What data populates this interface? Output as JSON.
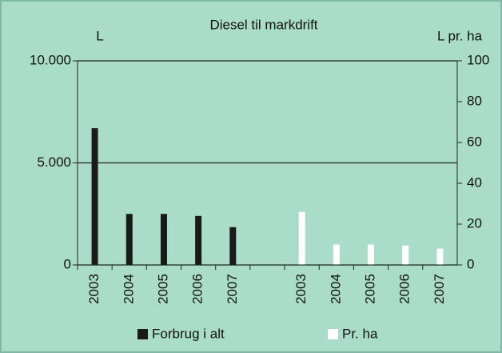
{
  "chart_data": {
    "type": "bar",
    "title": "Diesel til markdrift",
    "y_label": "L",
    "y2_label": "L pr. ha",
    "categories": [
      "2003",
      "2004",
      "2005",
      "2006",
      "2007",
      null,
      "2003",
      "2004",
      "2005",
      "2006",
      "2007"
    ],
    "series": [
      {
        "name": "Forbrug i alt",
        "color": "#1a1a1a",
        "values": [
          6700,
          2500,
          2500,
          2400,
          1850,
          null,
          null,
          null,
          null,
          null,
          null
        ]
      },
      {
        "name": "Pr. ha",
        "color": "#ffffff",
        "axis": "y2",
        "values": [
          null,
          null,
          null,
          null,
          null,
          null,
          26,
          10,
          10,
          9.5,
          8
        ]
      }
    ],
    "ylim": [
      0,
      10000
    ],
    "yticks": [
      0,
      {
        "value": 5000,
        "label": "5.000"
      },
      {
        "value": 10000,
        "label": "10.000"
      }
    ],
    "y2lim": [
      0,
      100
    ],
    "y2ticks": [
      0,
      20,
      40,
      60,
      80,
      100
    ],
    "grid": true,
    "legend": "bottom"
  }
}
